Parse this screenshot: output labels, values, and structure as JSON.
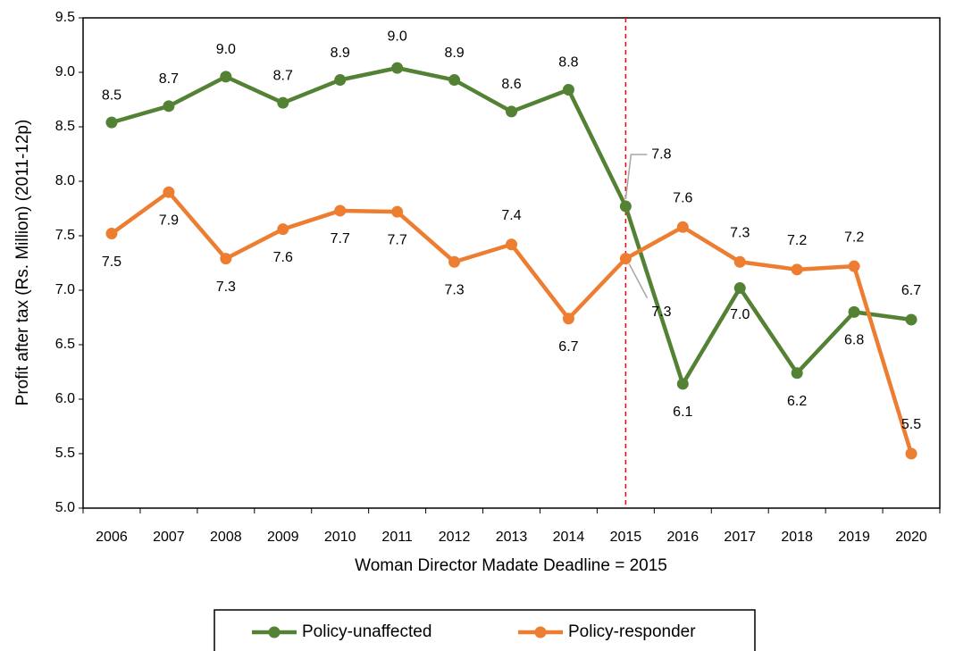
{
  "chart_data": {
    "type": "line",
    "x_label": "Woman Director Madate Deadline = 2015",
    "y_label": "Profit after tax (Rs. Million) (2011-12p)",
    "categories": [
      "2006",
      "2007",
      "2008",
      "2009",
      "2010",
      "2011",
      "2012",
      "2013",
      "2014",
      "2015",
      "2016",
      "2017",
      "2018",
      "2019",
      "2020"
    ],
    "series": [
      {
        "name": "Policy-unaffected",
        "color": "#548235",
        "values": [
          8.54,
          8.69,
          8.96,
          8.72,
          8.93,
          9.04,
          8.93,
          8.64,
          8.84,
          7.77,
          6.14,
          7.02,
          6.24,
          6.8,
          6.73
        ],
        "value_labels": [
          "8.5",
          "8.7",
          "9.0",
          "8.7",
          "8.9",
          "9.0",
          "8.9",
          "8.6",
          "8.8",
          "7.8",
          "6.1",
          "7.0",
          "6.2",
          "6.8",
          "6.7"
        ]
      },
      {
        "name": "Policy-responder",
        "color": "#ed7d31",
        "values": [
          7.52,
          7.9,
          7.29,
          7.56,
          7.73,
          7.72,
          7.26,
          7.42,
          6.74,
          7.29,
          7.58,
          7.26,
          7.19,
          7.22,
          5.5
        ],
        "value_labels": [
          "7.5",
          "7.9",
          "7.3",
          "7.6",
          "7.7",
          "7.7",
          "7.3",
          "7.4",
          "6.7",
          "7.3",
          "7.6",
          "7.3",
          "7.2",
          "7.2",
          "5.5"
        ]
      }
    ],
    "ylim": [
      5,
      9.5
    ],
    "yticks": [
      {
        "value": 5,
        "label": "5.0"
      },
      5.5,
      {
        "value": 6,
        "label": "6.0"
      },
      6.5,
      {
        "value": 7,
        "label": "7.0"
      },
      7.5,
      {
        "value": 8,
        "label": "8.0"
      },
      8.5,
      {
        "value": 9,
        "label": "9.0"
      },
      9.5
    ],
    "vline": "2015",
    "vline_color": "#ff0000",
    "grid": false,
    "legend": "bottom"
  }
}
